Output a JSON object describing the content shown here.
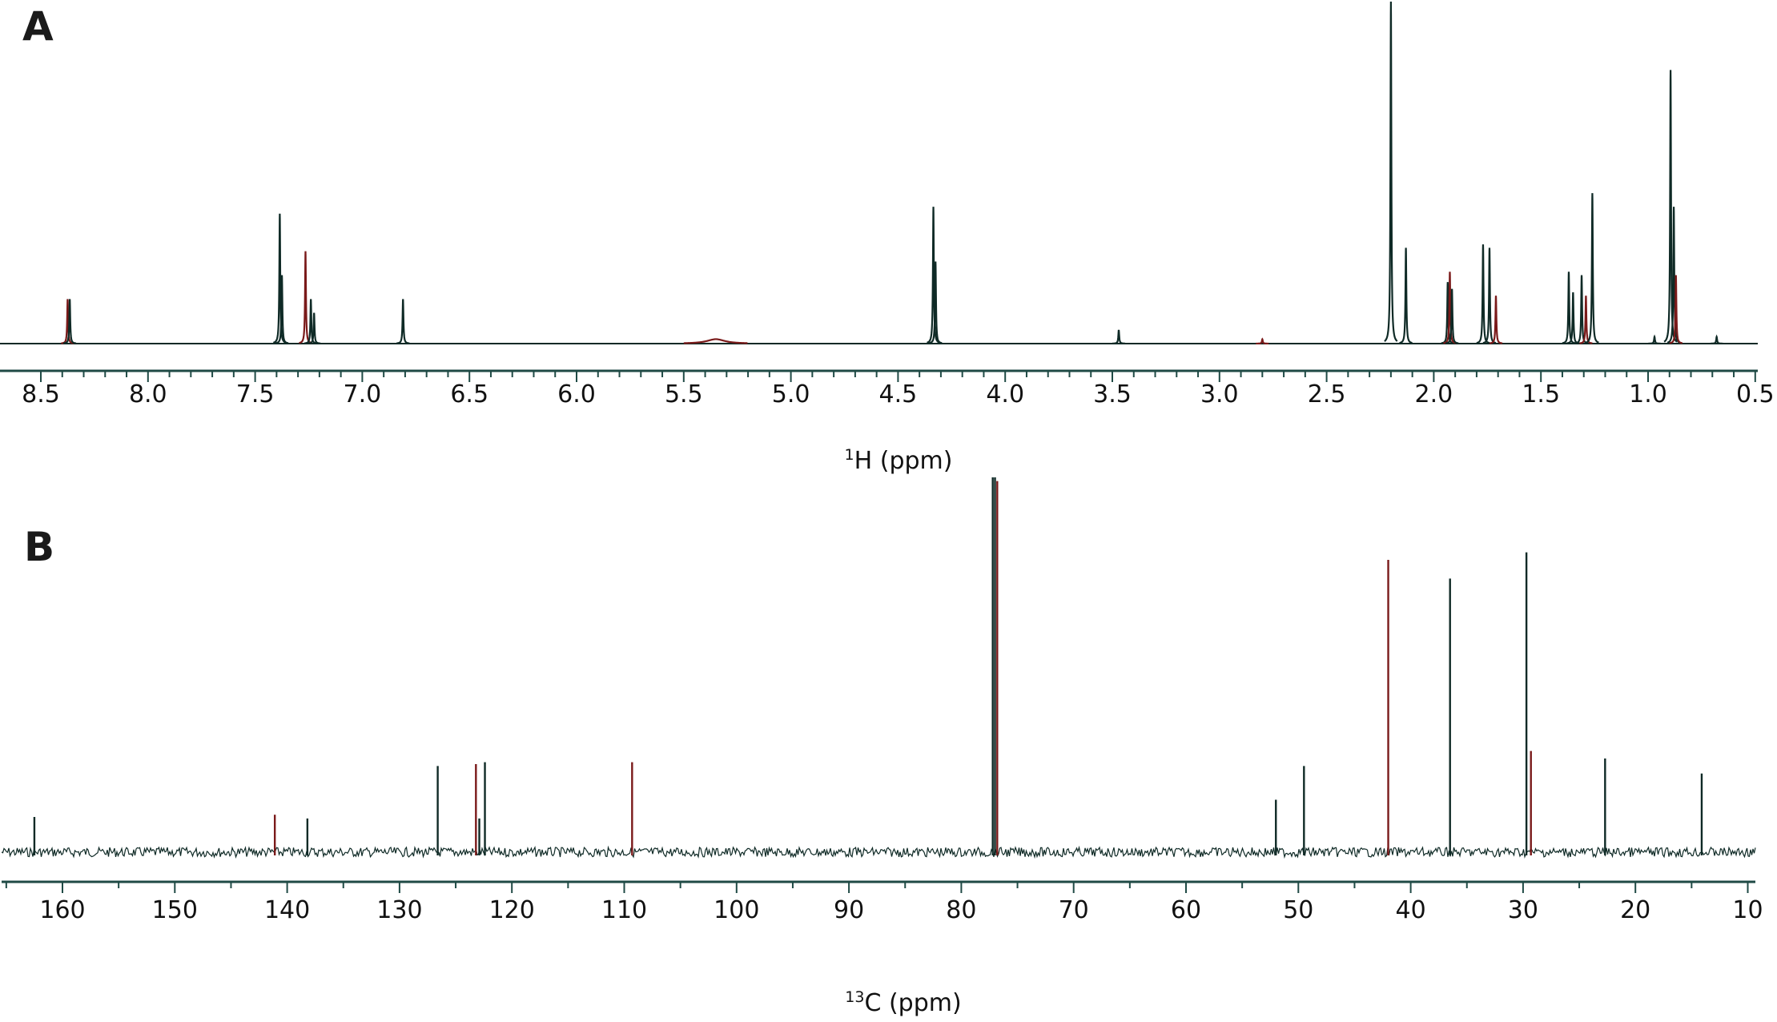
{
  "chart_data": [
    {
      "type": "line",
      "panel_label": "A",
      "title": "",
      "xlabel_sup": "1",
      "xlabel": "H (ppm)",
      "xlim": [
        8.5,
        0.5
      ],
      "x_ticks": [
        "8.5",
        "8.0",
        "7.5",
        "7.0",
        "6.5",
        "6.0",
        "5.5",
        "5.0",
        "4.5",
        "4.0",
        "3.5",
        "3.0",
        "2.5",
        "2.0",
        "1.5",
        "1.0",
        "0.5"
      ],
      "ylabel": "",
      "y_units": "relative intensity (%)",
      "peaks": [
        {
          "ppm": 8.375,
          "intensity": 13
        },
        {
          "ppm": 8.365,
          "intensity": 13
        },
        {
          "ppm": 7.385,
          "intensity": 38
        },
        {
          "ppm": 7.375,
          "intensity": 20
        },
        {
          "ppm": 7.265,
          "intensity": 27
        },
        {
          "ppm": 7.24,
          "intensity": 13
        },
        {
          "ppm": 7.225,
          "intensity": 9
        },
        {
          "ppm": 6.81,
          "intensity": 13
        },
        {
          "ppm": 5.35,
          "intensity": 1.3,
          "broad": true
        },
        {
          "ppm": 4.335,
          "intensity": 40
        },
        {
          "ppm": 4.325,
          "intensity": 24
        },
        {
          "ppm": 3.47,
          "intensity": 4
        },
        {
          "ppm": 2.8,
          "intensity": 1.3
        },
        {
          "ppm": 2.2,
          "intensity": 100
        },
        {
          "ppm": 2.13,
          "intensity": 28
        },
        {
          "ppm": 1.935,
          "intensity": 18
        },
        {
          "ppm": 1.925,
          "intensity": 21
        },
        {
          "ppm": 1.915,
          "intensity": 16
        },
        {
          "ppm": 1.77,
          "intensity": 29
        },
        {
          "ppm": 1.74,
          "intensity": 28
        },
        {
          "ppm": 1.71,
          "intensity": 14
        },
        {
          "ppm": 1.37,
          "intensity": 21
        },
        {
          "ppm": 1.35,
          "intensity": 15
        },
        {
          "ppm": 1.31,
          "intensity": 20
        },
        {
          "ppm": 1.29,
          "intensity": 14
        },
        {
          "ppm": 1.26,
          "intensity": 44
        },
        {
          "ppm": 0.895,
          "intensity": 80
        },
        {
          "ppm": 0.88,
          "intensity": 40
        },
        {
          "ppm": 0.87,
          "intensity": 20
        },
        {
          "ppm": 0.97,
          "intensity": 2
        },
        {
          "ppm": 0.68,
          "intensity": 2
        }
      ]
    },
    {
      "type": "line",
      "panel_label": "B",
      "title": "",
      "xlabel_sup": "13",
      "xlabel": "C (ppm)",
      "xlim": [
        165,
        10
      ],
      "x_ticks": [
        "160",
        "150",
        "140",
        "130",
        "120",
        "110",
        "100",
        "90",
        "80",
        "70",
        "60",
        "50",
        "40",
        "30",
        "20",
        "10"
      ],
      "ylabel": "",
      "y_units": "relative intensity (%)",
      "peaks": [
        {
          "ppm": 162.5,
          "intensity": 9.4
        },
        {
          "ppm": 141.1,
          "intensity": 10
        },
        {
          "ppm": 138.2,
          "intensity": 9
        },
        {
          "ppm": 126.6,
          "intensity": 23
        },
        {
          "ppm": 123.2,
          "intensity": 23.5
        },
        {
          "ppm": 122.9,
          "intensity": 9
        },
        {
          "ppm": 122.4,
          "intensity": 24
        },
        {
          "ppm": 109.3,
          "intensity": 24
        },
        {
          "ppm": 77.2,
          "intensity": 100
        },
        {
          "ppm": 77.0,
          "intensity": 100
        },
        {
          "ppm": 76.8,
          "intensity": 99
        },
        {
          "ppm": 52.0,
          "intensity": 14
        },
        {
          "ppm": 49.5,
          "intensity": 23
        },
        {
          "ppm": 42.0,
          "intensity": 78
        },
        {
          "ppm": 36.5,
          "intensity": 73
        },
        {
          "ppm": 29.7,
          "intensity": 80
        },
        {
          "ppm": 29.3,
          "intensity": 27
        },
        {
          "ppm": 22.7,
          "intensity": 25
        },
        {
          "ppm": 14.1,
          "intensity": 21
        }
      ]
    }
  ],
  "colors": {
    "trace": "#0f2a26",
    "accent": "#7a1a1a",
    "axis": "#1f4a45"
  }
}
